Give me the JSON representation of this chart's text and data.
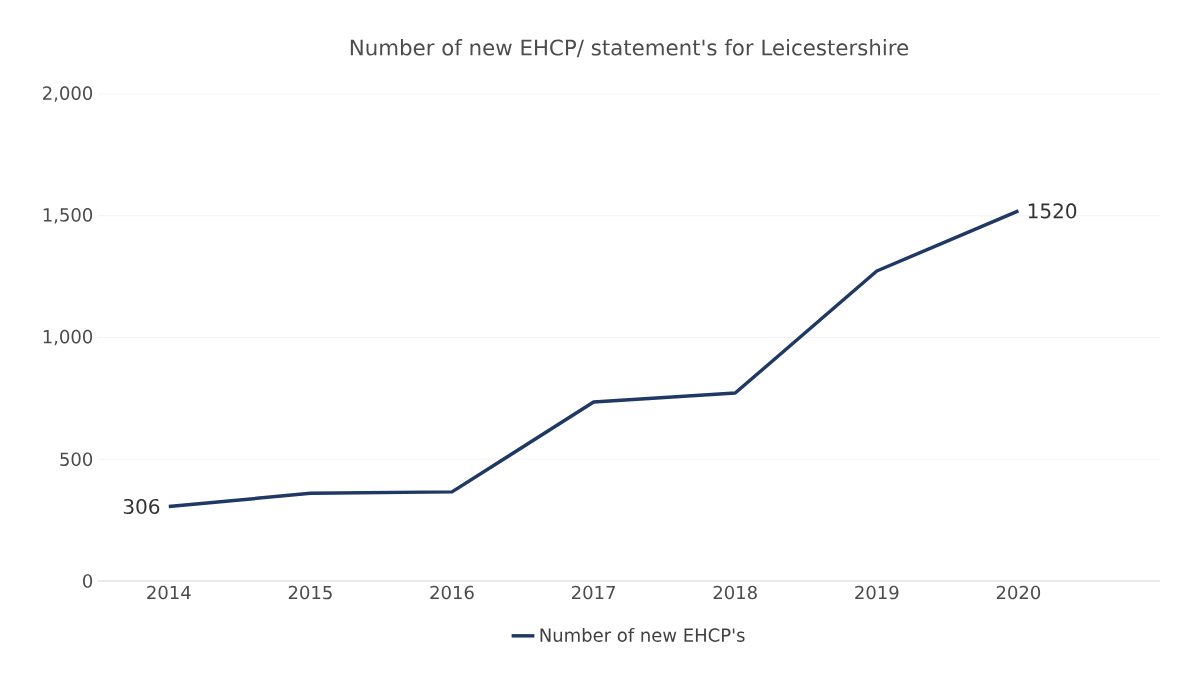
{
  "chart_data": {
    "type": "line",
    "title": "Number of new EHCP/ statement's for Leicestershire",
    "categories": [
      "2014",
      "2015",
      "2016",
      "2017",
      "2018",
      "2019",
      "2020"
    ],
    "series": [
      {
        "name": "Number of new EHCP's",
        "color": "#203864",
        "values": [
          306,
          360,
          366,
          735,
          772,
          1273,
          1520
        ],
        "value_labels": [
          "306",
          null,
          null,
          null,
          null,
          null,
          "1520"
        ]
      }
    ],
    "ylim": [
      0,
      2000
    ],
    "yticks": [
      0,
      {
        "value": 500,
        "label": "500"
      },
      {
        "value": 1000,
        "label": "1,000"
      },
      {
        "value": 1500,
        "label": "1,500"
      },
      {
        "value": 2000,
        "label": "2,000"
      }
    ],
    "grid": "y",
    "legend": "bottom"
  }
}
